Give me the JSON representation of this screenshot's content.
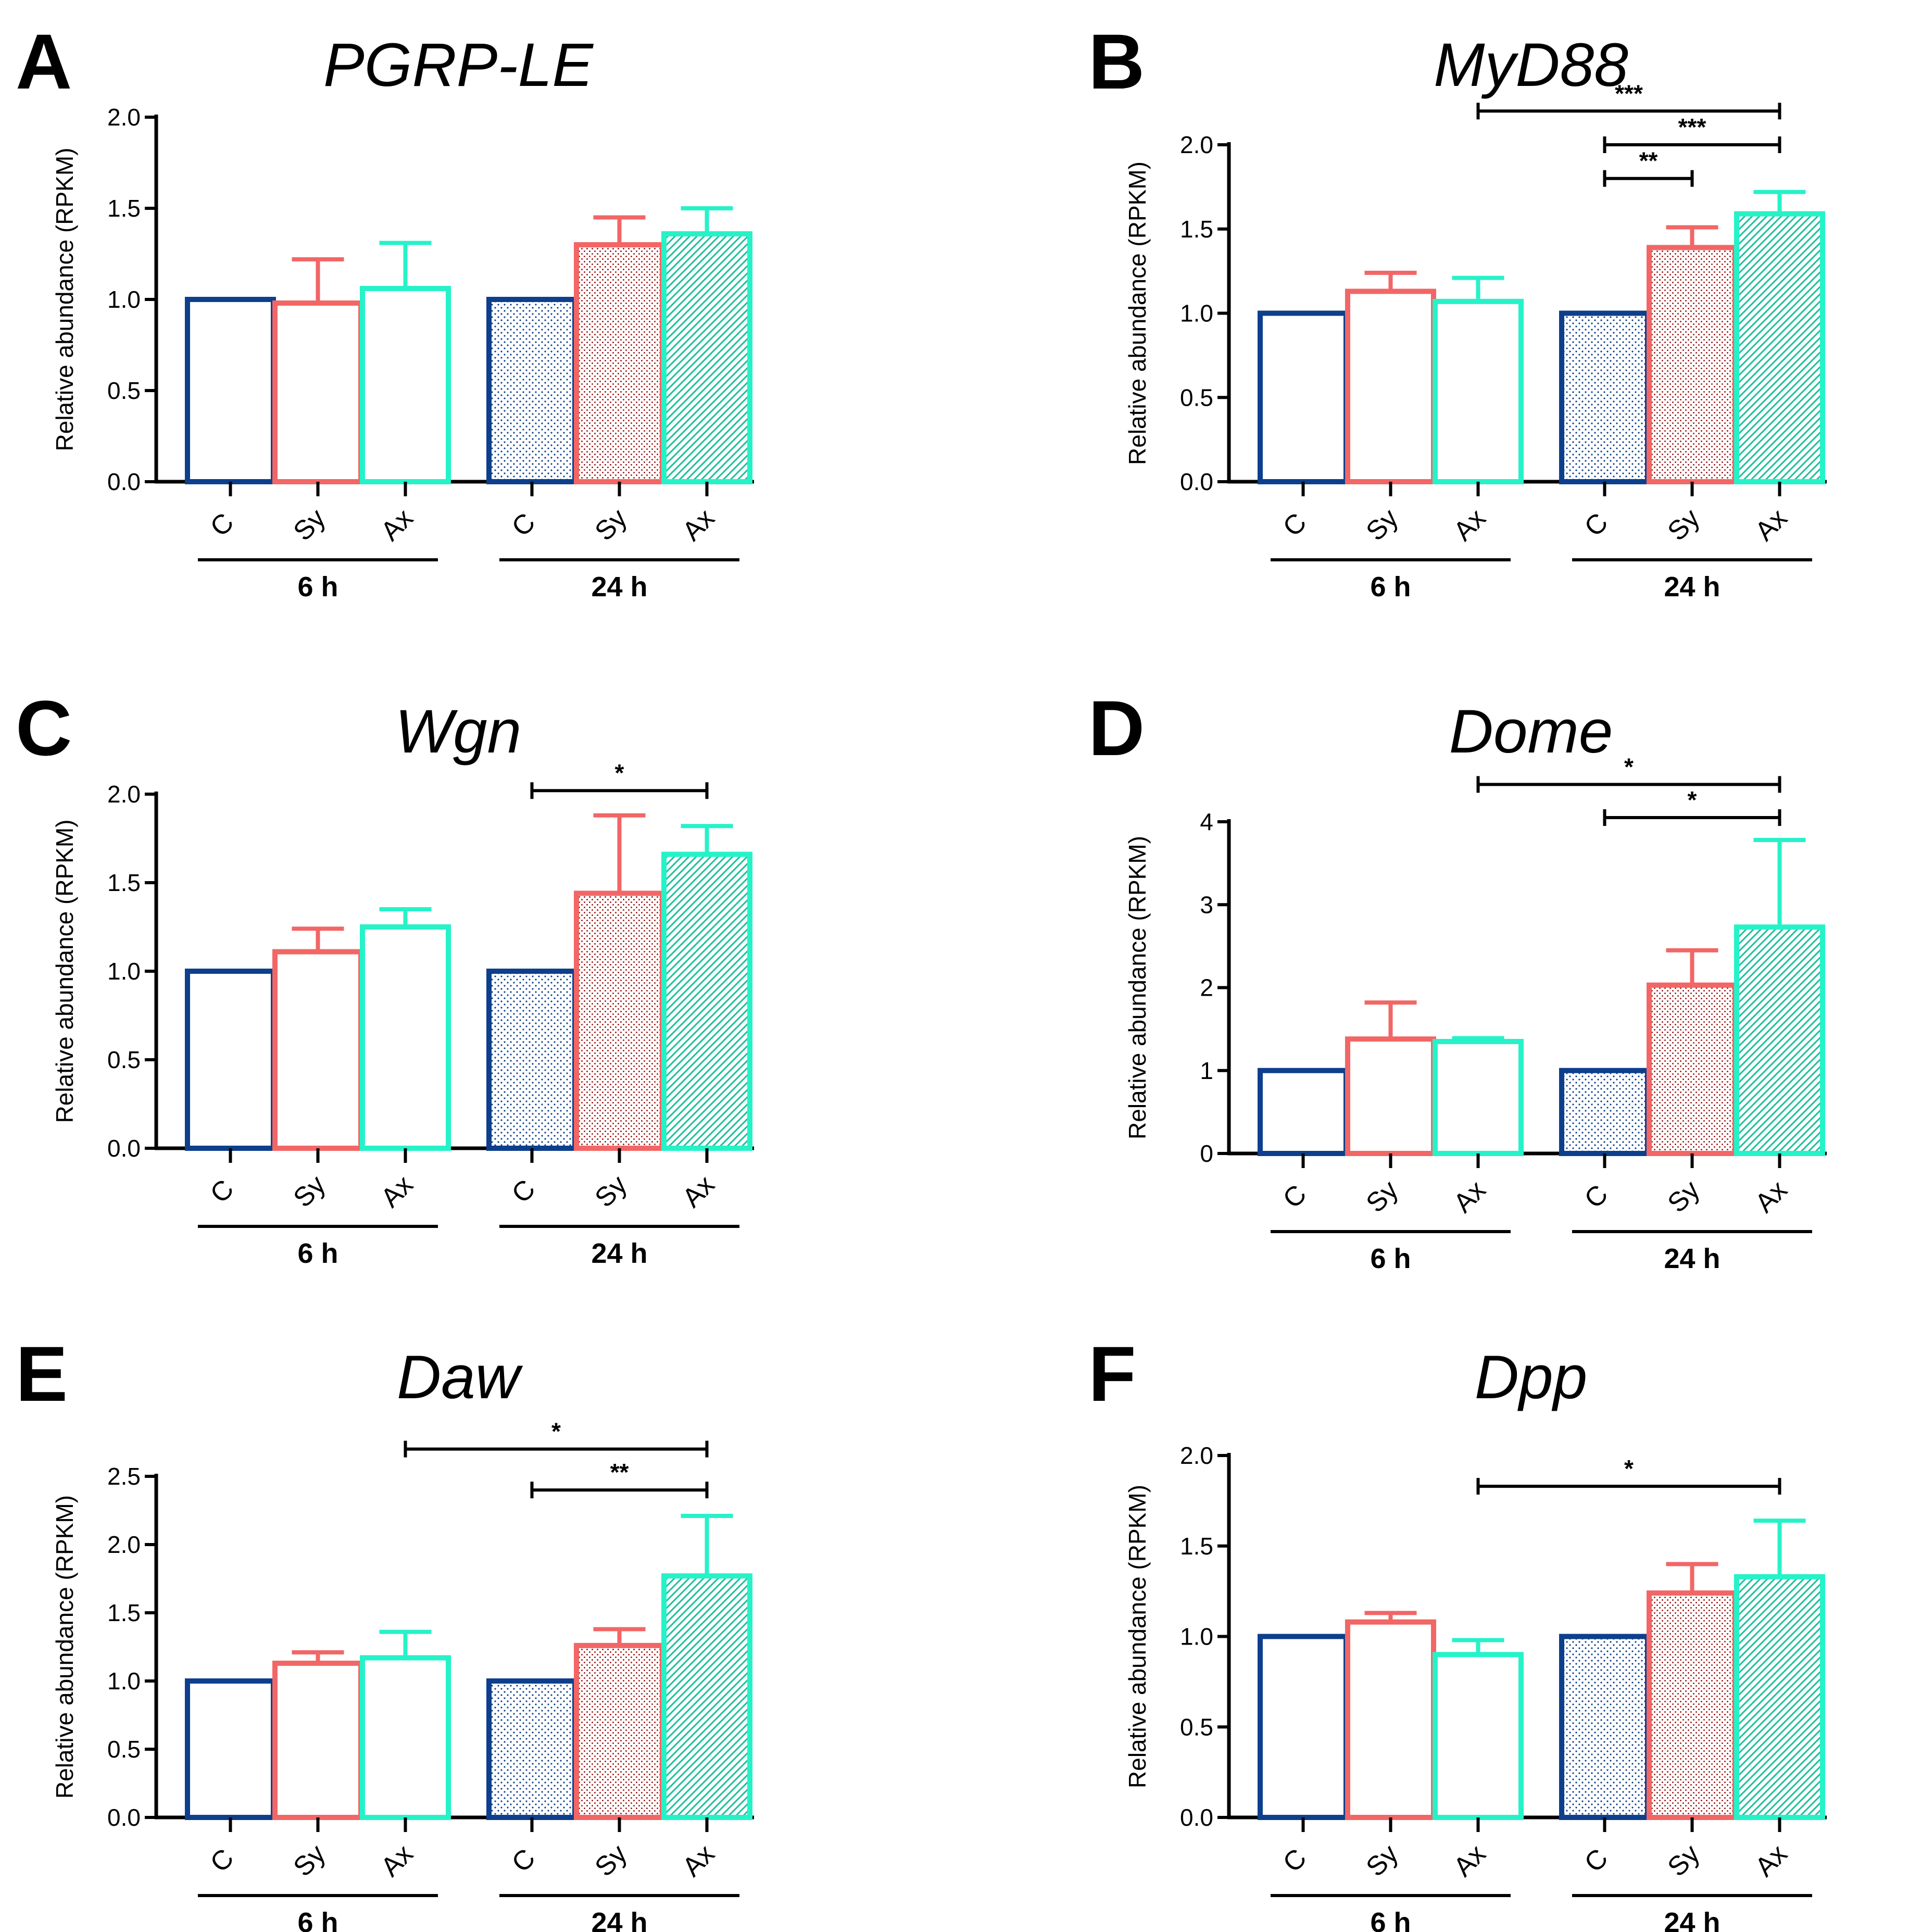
{
  "colors": {
    "control": "#0d3f8c",
    "sy": "#f26666",
    "ax": "#26f2c8",
    "sy_dot": "#a01a1a",
    "ax_hatch": "#1fbf9c",
    "axis": "#000000"
  },
  "chart_data": [
    {
      "type": "bar",
      "panel": "A",
      "title": "PGRP-LE",
      "ylabel": "Relative abundance (RPKM)",
      "ylim": [
        0,
        2.0
      ],
      "yticks": [
        "0.0",
        "0.5",
        "1.0",
        "1.5",
        "2.0"
      ],
      "ytick_values": [
        0,
        0.5,
        1.0,
        1.5,
        2.0
      ],
      "categories": [
        "C",
        "Sy",
        "Ax",
        "C",
        "Sy",
        "Ax"
      ],
      "groups": [
        "6 h",
        "24 h"
      ],
      "values": [
        1.0,
        0.98,
        1.06,
        1.0,
        1.3,
        1.36
      ],
      "errors": [
        0,
        0.24,
        0.25,
        0,
        0.15,
        0.14
      ],
      "significance": []
    },
    {
      "type": "bar",
      "panel": "B",
      "title": "MyD88",
      "ylabel": "Relative abundance (RPKM)",
      "ylim": [
        0,
        2.0
      ],
      "yticks": [
        "0.0",
        "0.5",
        "1.0",
        "1.5",
        "2.0"
      ],
      "ytick_values": [
        0,
        0.5,
        1.0,
        1.5,
        2.0
      ],
      "categories": [
        "C",
        "Sy",
        "Ax",
        "C",
        "Sy",
        "Ax"
      ],
      "groups": [
        "6 h",
        "24 h"
      ],
      "values": [
        1.0,
        1.13,
        1.07,
        1.0,
        1.39,
        1.59
      ],
      "errors": [
        0,
        0.11,
        0.14,
        0,
        0.12,
        0.13
      ],
      "significance": [
        {
          "from": 2,
          "to": 5,
          "label": "***",
          "level": 2.2
        },
        {
          "from": 3,
          "to": 5,
          "label": "***",
          "level": 2.0
        },
        {
          "from": 3,
          "to": 4,
          "label": "**",
          "level": 1.8
        }
      ]
    },
    {
      "type": "bar",
      "panel": "C",
      "title": "Wgn",
      "ylabel": "Relative abundance (RPKM)",
      "ylim": [
        0,
        2.0
      ],
      "yticks": [
        "0.0",
        "0.5",
        "1.0",
        "1.5",
        "2.0"
      ],
      "ytick_values": [
        0,
        0.5,
        1.0,
        1.5,
        2.0
      ],
      "categories": [
        "C",
        "Sy",
        "Ax",
        "C",
        "Sy",
        "Ax"
      ],
      "groups": [
        "6 h",
        "24 h"
      ],
      "values": [
        1.0,
        1.11,
        1.25,
        1.0,
        1.44,
        1.66
      ],
      "errors": [
        0,
        0.13,
        0.1,
        0,
        0.44,
        0.16
      ],
      "significance": [
        {
          "from": 3,
          "to": 5,
          "label": "*",
          "level": 2.02
        }
      ]
    },
    {
      "type": "bar",
      "panel": "D",
      "title": "Dome",
      "ylabel": "Relative abundance (RPKM)",
      "ylim": [
        0,
        4
      ],
      "yticks": [
        "0",
        "1",
        "2",
        "3",
        "4"
      ],
      "ytick_values": [
        0,
        1,
        2,
        3,
        4
      ],
      "categories": [
        "C",
        "Sy",
        "Ax",
        "C",
        "Sy",
        "Ax"
      ],
      "groups": [
        "6 h",
        "24 h"
      ],
      "values": [
        1.0,
        1.38,
        1.35,
        1.0,
        2.03,
        2.73
      ],
      "errors": [
        0,
        0.44,
        0.04,
        0,
        0.42,
        1.05
      ],
      "significance": [
        {
          "from": 2,
          "to": 5,
          "label": "*",
          "level": 4.45
        },
        {
          "from": 3,
          "to": 5,
          "label": "*",
          "level": 4.05
        }
      ]
    },
    {
      "type": "bar",
      "panel": "E",
      "title": "Daw",
      "ylabel": "Relative abundance (RPKM)",
      "ylim": [
        0,
        2.5
      ],
      "yticks": [
        "0.0",
        "0.5",
        "1.0",
        "1.5",
        "2.0",
        "2.5"
      ],
      "ytick_values": [
        0,
        0.5,
        1.0,
        1.5,
        2.0,
        2.5
      ],
      "categories": [
        "C",
        "Sy",
        "Ax",
        "C",
        "Sy",
        "Ax"
      ],
      "groups": [
        "6 h",
        "24 h"
      ],
      "values": [
        1.0,
        1.13,
        1.17,
        1.0,
        1.26,
        1.77
      ],
      "errors": [
        0,
        0.08,
        0.19,
        0,
        0.12,
        0.44
      ],
      "significance": [
        {
          "from": 2,
          "to": 5,
          "label": "*",
          "level": 2.7
        },
        {
          "from": 3,
          "to": 5,
          "label": "**",
          "level": 2.4
        }
      ]
    },
    {
      "type": "bar",
      "panel": "F",
      "title": "Dpp",
      "ylabel": "Relative abundance (RPKM)",
      "ylim": [
        0,
        2.0
      ],
      "yticks": [
        "0.0",
        "0.5",
        "1.0",
        "1.5",
        "2.0"
      ],
      "ytick_values": [
        0,
        0.5,
        1.0,
        1.5,
        2.0
      ],
      "categories": [
        "C",
        "Sy",
        "Ax",
        "C",
        "Sy",
        "Ax"
      ],
      "groups": [
        "6 h",
        "24 h"
      ],
      "values": [
        1.0,
        1.08,
        0.9,
        1.0,
        1.24,
        1.33
      ],
      "errors": [
        0,
        0.05,
        0.08,
        0,
        0.16,
        0.31
      ],
      "significance": [
        {
          "from": 2,
          "to": 5,
          "label": "*",
          "level": 1.83
        }
      ]
    }
  ]
}
